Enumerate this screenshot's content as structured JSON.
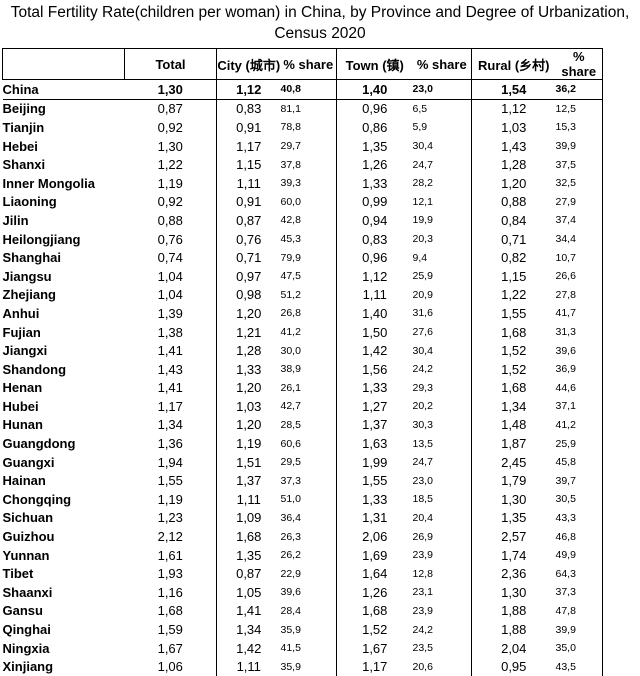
{
  "title": "Total Fertility Rate(children per woman) in China, by Province and Degree of Urbanization, Census 2020",
  "headers": {
    "region": "",
    "total": "Total",
    "city": "City (城市)",
    "city_share": "% share",
    "town": "Town (镇)",
    "town_share": "% share",
    "rural": "Rural (乡村)",
    "rural_share": "% share"
  },
  "rows": [
    {
      "name": "China",
      "total": "1,30",
      "city": "1,12",
      "city_share": "40,8",
      "town": "1,40",
      "town_share": "23,0",
      "rural": "1,54",
      "rural_share": "36,2"
    },
    {
      "name": "Beijing",
      "total": "0,87",
      "city": "0,83",
      "city_share": "81,1",
      "town": "0,96",
      "town_share": "6,5",
      "rural": "1,12",
      "rural_share": "12,5"
    },
    {
      "name": "Tianjin",
      "total": "0,92",
      "city": "0,91",
      "city_share": "78,8",
      "town": "0,86",
      "town_share": "5,9",
      "rural": "1,03",
      "rural_share": "15,3"
    },
    {
      "name": "Hebei",
      "total": "1,30",
      "city": "1,17",
      "city_share": "29,7",
      "town": "1,35",
      "town_share": "30,4",
      "rural": "1,43",
      "rural_share": "39,9"
    },
    {
      "name": "Shanxi",
      "total": "1,22",
      "city": "1,15",
      "city_share": "37,8",
      "town": "1,26",
      "town_share": "24,7",
      "rural": "1,28",
      "rural_share": "37,5"
    },
    {
      "name": "Inner Mongolia",
      "total": "1,19",
      "city": "1,11",
      "city_share": "39,3",
      "town": "1,33",
      "town_share": "28,2",
      "rural": "1,20",
      "rural_share": "32,5"
    },
    {
      "name": "Liaoning",
      "total": "0,92",
      "city": "0,91",
      "city_share": "60,0",
      "town": "0,99",
      "town_share": "12,1",
      "rural": "0,88",
      "rural_share": "27,9"
    },
    {
      "name": "Jilin",
      "total": "0,88",
      "city": "0,87",
      "city_share": "42,8",
      "town": "0,94",
      "town_share": "19,9",
      "rural": "0,84",
      "rural_share": "37,4"
    },
    {
      "name": "Heilongjiang",
      "total": "0,76",
      "city": "0,76",
      "city_share": "45,3",
      "town": "0,83",
      "town_share": "20,3",
      "rural": "0,71",
      "rural_share": "34,4"
    },
    {
      "name": "Shanghai",
      "total": "0,74",
      "city": "0,71",
      "city_share": "79,9",
      "town": "0,96",
      "town_share": "9,4",
      "rural": "0,82",
      "rural_share": "10,7"
    },
    {
      "name": "Jiangsu",
      "total": "1,04",
      "city": "0,97",
      "city_share": "47,5",
      "town": "1,12",
      "town_share": "25,9",
      "rural": "1,15",
      "rural_share": "26,6"
    },
    {
      "name": "Zhejiang",
      "total": "1,04",
      "city": "0,98",
      "city_share": "51,2",
      "town": "1,11",
      "town_share": "20,9",
      "rural": "1,22",
      "rural_share": "27,8"
    },
    {
      "name": "Anhui",
      "total": "1,39",
      "city": "1,20",
      "city_share": "26,8",
      "town": "1,40",
      "town_share": "31,6",
      "rural": "1,55",
      "rural_share": "41,7"
    },
    {
      "name": "Fujian",
      "total": "1,38",
      "city": "1,21",
      "city_share": "41,2",
      "town": "1,50",
      "town_share": "27,6",
      "rural": "1,68",
      "rural_share": "31,3"
    },
    {
      "name": "Jiangxi",
      "total": "1,41",
      "city": "1,28",
      "city_share": "30,0",
      "town": "1,42",
      "town_share": "30,4",
      "rural": "1,52",
      "rural_share": "39,6"
    },
    {
      "name": "Shandong",
      "total": "1,43",
      "city": "1,33",
      "city_share": "38,9",
      "town": "1,56",
      "town_share": "24,2",
      "rural": "1,52",
      "rural_share": "36,9"
    },
    {
      "name": "Henan",
      "total": "1,41",
      "city": "1,20",
      "city_share": "26,1",
      "town": "1,33",
      "town_share": "29,3",
      "rural": "1,68",
      "rural_share": "44,6"
    },
    {
      "name": "Hubei",
      "total": "1,17",
      "city": "1,03",
      "city_share": "42,7",
      "town": "1,27",
      "town_share": "20,2",
      "rural": "1,34",
      "rural_share": "37,1"
    },
    {
      "name": "Hunan",
      "total": "1,34",
      "city": "1,20",
      "city_share": "28,5",
      "town": "1,37",
      "town_share": "30,3",
      "rural": "1,48",
      "rural_share": "41,2"
    },
    {
      "name": "Guangdong",
      "total": "1,36",
      "city": "1,19",
      "city_share": "60,6",
      "town": "1,63",
      "town_share": "13,5",
      "rural": "1,87",
      "rural_share": "25,9"
    },
    {
      "name": "Guangxi",
      "total": "1,94",
      "city": "1,51",
      "city_share": "29,5",
      "town": "1,99",
      "town_share": "24,7",
      "rural": "2,45",
      "rural_share": "45,8"
    },
    {
      "name": "Hainan",
      "total": "1,55",
      "city": "1,37",
      "city_share": "37,3",
      "town": "1,55",
      "town_share": "23,0",
      "rural": "1,79",
      "rural_share": "39,7"
    },
    {
      "name": "Chongqing",
      "total": "1,19",
      "city": "1,11",
      "city_share": "51,0",
      "town": "1,33",
      "town_share": "18,5",
      "rural": "1,30",
      "rural_share": "30,5"
    },
    {
      "name": "Sichuan",
      "total": "1,23",
      "city": "1,09",
      "city_share": "36,4",
      "town": "1,31",
      "town_share": "20,4",
      "rural": "1,35",
      "rural_share": "43,3"
    },
    {
      "name": "Guizhou",
      "total": "2,12",
      "city": "1,68",
      "city_share": "26,3",
      "town": "2,06",
      "town_share": "26,9",
      "rural": "2,57",
      "rural_share": "46,8"
    },
    {
      "name": "Yunnan",
      "total": "1,61",
      "city": "1,35",
      "city_share": "26,2",
      "town": "1,69",
      "town_share": "23,9",
      "rural": "1,74",
      "rural_share": "49,9"
    },
    {
      "name": "Tibet",
      "total": "1,93",
      "city": "0,87",
      "city_share": "22,9",
      "town": "1,64",
      "town_share": "12,8",
      "rural": "2,36",
      "rural_share": "64,3"
    },
    {
      "name": "Shaanxi",
      "total": "1,16",
      "city": "1,05",
      "city_share": "39,6",
      "town": "1,26",
      "town_share": "23,1",
      "rural": "1,30",
      "rural_share": "37,3"
    },
    {
      "name": "Gansu",
      "total": "1,68",
      "city": "1,41",
      "city_share": "28,4",
      "town": "1,68",
      "town_share": "23,9",
      "rural": "1,88",
      "rural_share": "47,8"
    },
    {
      "name": "Qinghai",
      "total": "1,59",
      "city": "1,34",
      "city_share": "35,9",
      "town": "1,52",
      "town_share": "24,2",
      "rural": "1,88",
      "rural_share": "39,9"
    },
    {
      "name": "Ningxia",
      "total": "1,67",
      "city": "1,42",
      "city_share": "41,5",
      "town": "1,67",
      "town_share": "23,5",
      "rural": "2,04",
      "rural_share": "35,0"
    },
    {
      "name": "Xinjiang",
      "total": "1,06",
      "city": "1,11",
      "city_share": "35,9",
      "town": "1,17",
      "town_share": "20,6",
      "rural": "0,95",
      "rural_share": "43,5"
    }
  ]
}
